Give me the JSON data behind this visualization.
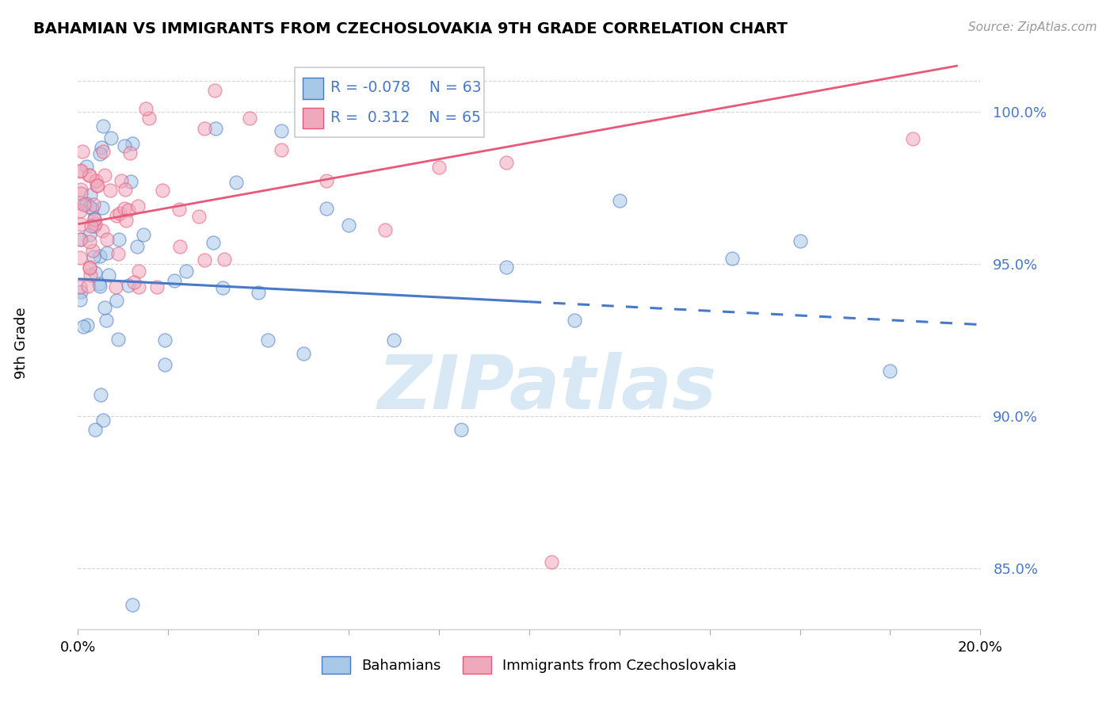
{
  "title": "BAHAMIAN VS IMMIGRANTS FROM CZECHOSLOVAKIA 9TH GRADE CORRELATION CHART",
  "source": "Source: ZipAtlas.com",
  "ylabel": "9th Grade",
  "xlim": [
    0.0,
    20.0
  ],
  "ylim": [
    83.0,
    101.8
  ],
  "yticks": [
    85.0,
    90.0,
    95.0,
    100.0
  ],
  "ytick_labels": [
    "85.0%",
    "90.0%",
    "95.0%",
    "100.0%"
  ],
  "blue_color": "#A8C8E8",
  "pink_color": "#F0A8BC",
  "blue_line_color": "#4878C8",
  "pink_line_color": "#E85878",
  "R_blue": -0.078,
  "N_blue": 63,
  "R_pink": 0.312,
  "N_pink": 65,
  "legend_labels": [
    "Bahamians",
    "Immigrants from Czechoslovakia"
  ],
  "blue_trend_x": [
    0,
    20
  ],
  "blue_trend_y": [
    94.5,
    93.0
  ],
  "blue_solid_x_end": 10.0,
  "pink_trend_x": [
    0,
    19.5
  ],
  "pink_trend_y": [
    96.3,
    101.5
  ],
  "xtick_positions": [
    0,
    2,
    4,
    6,
    8,
    10,
    12,
    14,
    16,
    18,
    20
  ],
  "watermark_text": "ZIPatlas",
  "watermark_color": "#D8E8F4",
  "background_color": "#FFFFFF",
  "grid_color": "#CCCCCC"
}
